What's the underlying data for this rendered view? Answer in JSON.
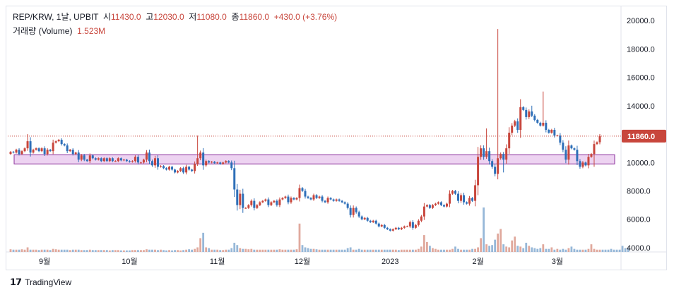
{
  "legend": {
    "symbol": "REP/KRW, 1날, UPBIT",
    "open_label": "시",
    "open": "11430.0",
    "high_label": "고",
    "high": "12030.0",
    "low_label": "저",
    "low": "11080.0",
    "close_label": "종",
    "close": "11860.0",
    "change": "+430.0 (+3.76%)",
    "volume_label": "거래량 (Volume)",
    "volume": "1.523M"
  },
  "footer": {
    "brand": "TradingView"
  },
  "colors": {
    "up": "#c8463c",
    "down": "#2e6fb8",
    "vol_up": "#e0a99d",
    "vol_down": "#97b8d8",
    "zone_fill": "#e8c8ee",
    "zone_border": "#8b2f9c",
    "price_label": "#c8463c"
  },
  "chart_data": {
    "type": "candlestick",
    "y_ticks": [
      "20000.0",
      "18000.0",
      "16000.0",
      "14000.0",
      "12000.0",
      "10000.0",
      "8000.0",
      "6000.0",
      "4000.0"
    ],
    "y_range": [
      3700,
      21000
    ],
    "x_ticks": [
      {
        "label": "9월",
        "bar": 12
      },
      {
        "label": "10월",
        "bar": 42
      },
      {
        "label": "11월",
        "bar": 73
      },
      {
        "label": "12월",
        "bar": 103
      },
      {
        "label": "2023",
        "bar": 134
      },
      {
        "label": "2월",
        "bar": 165
      },
      {
        "label": "3월",
        "bar": 193
      }
    ],
    "last_price": "11860.0",
    "zone": {
      "low": 9900,
      "high": 10550
    },
    "closes": [
      10750,
      10700,
      10900,
      10600,
      10800,
      11000,
      11500,
      10700,
      10900,
      11000,
      10800,
      11000,
      10600,
      10900,
      10800,
      11400,
      11500,
      11600,
      11300,
      11200,
      10800,
      10900,
      10600,
      10700,
      10200,
      10500,
      10200,
      10100,
      10500,
      10300,
      10200,
      10300,
      10100,
      10300,
      10100,
      10300,
      10100,
      10100,
      10300,
      10150,
      10200,
      10100,
      10050,
      10100,
      10400,
      10000,
      10000,
      10200,
      10700,
      10100,
      9800,
      10300,
      9700,
      9750,
      9600,
      9500,
      9700,
      9500,
      9300,
      9400,
      9600,
      9300,
      9700,
      9500,
      9400,
      9900,
      10300,
      10700,
      9800,
      10100,
      10000,
      10050,
      9950,
      10000,
      9900,
      10000,
      10100,
      10000,
      9600,
      8100,
      7000,
      7800,
      6800,
      6800,
      7000,
      7300,
      6800,
      7000,
      7200,
      7300,
      7400,
      7000,
      7200,
      7300,
      7000,
      7400,
      7500,
      7600,
      7200,
      7500,
      7400,
      7500,
      8200,
      8000,
      7600,
      7500,
      7400,
      7700,
      7500,
      7600,
      7300,
      7200,
      7500,
      7400,
      7300,
      7400,
      7300,
      7200,
      7100,
      6800,
      6300,
      6800,
      6500,
      6200,
      6000,
      6100,
      5900,
      5800,
      5900,
      5700,
      5500,
      5600,
      5400,
      5300,
      5200,
      5300,
      5400,
      5300,
      5400,
      5500,
      5500,
      5800,
      5400,
      5600,
      5900,
      6200,
      6900,
      7000,
      6800,
      7000,
      7100,
      7200,
      7000,
      6900,
      7100,
      7800,
      8000,
      7800,
      7300,
      7700,
      7200,
      7100,
      7500,
      7300,
      8400,
      10400,
      11000,
      10400,
      10800,
      10100,
      9700,
      9200,
      10300,
      10600,
      10200,
      11000,
      12100,
      12600,
      12900,
      12300,
      13900,
      13700,
      13200,
      13600,
      13300,
      13000,
      12800,
      12600,
      12800,
      12300,
      12100,
      12300,
      11900,
      11900,
      11400,
      10900,
      10200,
      11200,
      11000,
      10900,
      10100,
      9700,
      10000,
      9800,
      10400,
      10600,
      11300,
      11430,
      11860
    ],
    "volumes": [
      0.35,
      0.3,
      0.3,
      0.3,
      0.35,
      0.3,
      0.6,
      0.3,
      0.3,
      0.3,
      0.25,
      0.3,
      0.3,
      0.3,
      0.25,
      0.4,
      0.35,
      0.3,
      0.3,
      0.3,
      0.3,
      0.25,
      0.3,
      0.3,
      0.3,
      0.25,
      0.25,
      0.25,
      0.3,
      0.25,
      0.25,
      0.25,
      0.25,
      0.25,
      0.25,
      0.2,
      0.25,
      0.25,
      0.25,
      0.2,
      0.2,
      0.2,
      0.2,
      0.25,
      0.25,
      0.25,
      0.25,
      0.25,
      0.35,
      0.3,
      0.3,
      0.3,
      0.25,
      0.3,
      0.25,
      0.2,
      0.25,
      0.2,
      0.25,
      0.25,
      0.2,
      0.25,
      0.3,
      0.35,
      0.3,
      0.4,
      0.6,
      1.8,
      2.5,
      0.6,
      0.5,
      0.3,
      0.3,
      0.3,
      0.25,
      0.25,
      0.3,
      0.3,
      0.5,
      1.2,
      0.9,
      0.5,
      0.4,
      0.4,
      0.35,
      0.4,
      0.3,
      0.3,
      0.3,
      0.3,
      0.3,
      0.3,
      0.3,
      0.3,
      0.3,
      0.35,
      0.3,
      0.3,
      0.3,
      0.3,
      0.3,
      0.35,
      3.7,
      0.9,
      0.6,
      0.5,
      0.4,
      0.4,
      0.35,
      0.3,
      0.3,
      0.3,
      0.3,
      0.3,
      0.3,
      0.3,
      0.3,
      0.3,
      0.3,
      0.5,
      0.6,
      0.3,
      0.3,
      0.4,
      0.3,
      0.3,
      0.3,
      0.3,
      0.3,
      0.3,
      0.3,
      0.3,
      0.3,
      0.3,
      0.3,
      0.3,
      0.3,
      0.25,
      0.3,
      0.3,
      0.3,
      0.3,
      0.3,
      0.3,
      0.4,
      0.7,
      2.2,
      1.3,
      0.8,
      0.5,
      0.4,
      0.3,
      0.3,
      0.3,
      0.3,
      0.3,
      0.4,
      0.7,
      0.4,
      0.3,
      0.3,
      0.3,
      0.3,
      0.4,
      0.4,
      0.6,
      1.8,
      5.8,
      1.0,
      0.8,
      0.9,
      1.6,
      2.4,
      3.0,
      1.0,
      0.7,
      0.6,
      1.5,
      2.0,
      0.8,
      0.7,
      0.5,
      1.2,
      0.8,
      0.6,
      0.5,
      0.4,
      0.5,
      1.0,
      0.4,
      0.4,
      0.6,
      0.3,
      0.4,
      0.3,
      0.4,
      0.3,
      0.5,
      0.7,
      0.4,
      0.3,
      0.3,
      0.3,
      0.3,
      0.4,
      1.0,
      0.4,
      0.3,
      0.3,
      0.3,
      0.3,
      0.3,
      0.4,
      0.3,
      0.3,
      0.3,
      0.8,
      0.5,
      0.5
    ]
  }
}
